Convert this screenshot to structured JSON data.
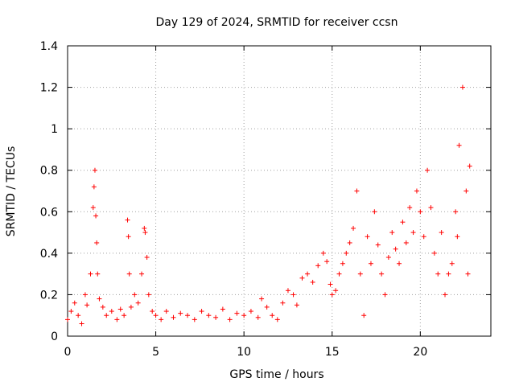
{
  "chart_data": {
    "type": "scatter",
    "title": "Day 129 of 2024, SRMTID for receiver ccsn",
    "xlabel": "GPS time / hours",
    "ylabel": "SRMTID / TECUs",
    "xlim": [
      0,
      24
    ],
    "ylim": [
      0,
      1.4
    ],
    "x_ticks": [
      0,
      5,
      10,
      15,
      20
    ],
    "x_tick_labels": [
      "0",
      "5",
      "10",
      "15",
      "20"
    ],
    "y_ticks": [
      0,
      0.2,
      0.4,
      0.6,
      0.8,
      1.0,
      1.2,
      1.4
    ],
    "y_tick_labels": [
      "0",
      "0.2",
      "0.4",
      "0.6",
      "0.8",
      "1",
      "1.2",
      "1.4"
    ],
    "grid": true,
    "marker": "+",
    "color": "#ff0000",
    "series": [
      {
        "name": "SRMTID",
        "x": [
          0.0,
          0.2,
          0.4,
          0.6,
          0.8,
          1.0,
          1.1,
          1.3,
          1.45,
          1.5,
          1.55,
          1.6,
          1.65,
          1.7,
          1.8,
          2.0,
          2.2,
          2.5,
          2.8,
          3.0,
          3.2,
          3.4,
          3.45,
          3.5,
          3.6,
          3.8,
          4.0,
          4.2,
          4.35,
          4.4,
          4.5,
          4.6,
          4.8,
          5.0,
          5.3,
          5.6,
          6.0,
          6.4,
          6.8,
          7.2,
          7.6,
          8.0,
          8.4,
          8.8,
          9.2,
          9.6,
          10.0,
          10.4,
          10.8,
          11.0,
          11.3,
          11.6,
          11.9,
          12.2,
          12.5,
          12.8,
          13.0,
          13.3,
          13.6,
          13.9,
          14.2,
          14.5,
          14.7,
          14.9,
          15.0,
          15.2,
          15.4,
          15.6,
          15.8,
          16.0,
          16.2,
          16.4,
          16.6,
          16.8,
          17.0,
          17.2,
          17.4,
          17.6,
          17.8,
          18.0,
          18.2,
          18.4,
          18.6,
          18.8,
          19.0,
          19.2,
          19.4,
          19.6,
          19.8,
          20.0,
          20.2,
          20.4,
          20.6,
          20.8,
          21.0,
          21.2,
          21.4,
          21.6,
          21.8,
          22.0,
          22.1,
          22.2,
          22.4,
          22.6,
          22.7,
          22.8
        ],
        "y": [
          0.08,
          0.12,
          0.16,
          0.1,
          0.06,
          0.2,
          0.15,
          0.3,
          0.62,
          0.72,
          0.8,
          0.58,
          0.45,
          0.3,
          0.18,
          0.14,
          0.1,
          0.12,
          0.08,
          0.13,
          0.1,
          0.56,
          0.48,
          0.3,
          0.14,
          0.2,
          0.16,
          0.3,
          0.52,
          0.5,
          0.38,
          0.2,
          0.12,
          0.1,
          0.08,
          0.12,
          0.09,
          0.11,
          0.1,
          0.08,
          0.12,
          0.1,
          0.09,
          0.13,
          0.08,
          0.11,
          0.1,
          0.12,
          0.09,
          0.18,
          0.14,
          0.1,
          0.08,
          0.16,
          0.22,
          0.2,
          0.15,
          0.28,
          0.3,
          0.26,
          0.34,
          0.4,
          0.36,
          0.25,
          0.2,
          0.22,
          0.3,
          0.35,
          0.4,
          0.45,
          0.52,
          0.7,
          0.3,
          0.1,
          0.48,
          0.35,
          0.6,
          0.44,
          0.3,
          0.2,
          0.38,
          0.5,
          0.42,
          0.35,
          0.55,
          0.45,
          0.62,
          0.5,
          0.7,
          0.6,
          0.48,
          0.8,
          0.62,
          0.4,
          0.3,
          0.5,
          0.2,
          0.3,
          0.35,
          0.6,
          0.48,
          0.92,
          1.2,
          0.7,
          0.3,
          0.82
        ]
      }
    ]
  }
}
